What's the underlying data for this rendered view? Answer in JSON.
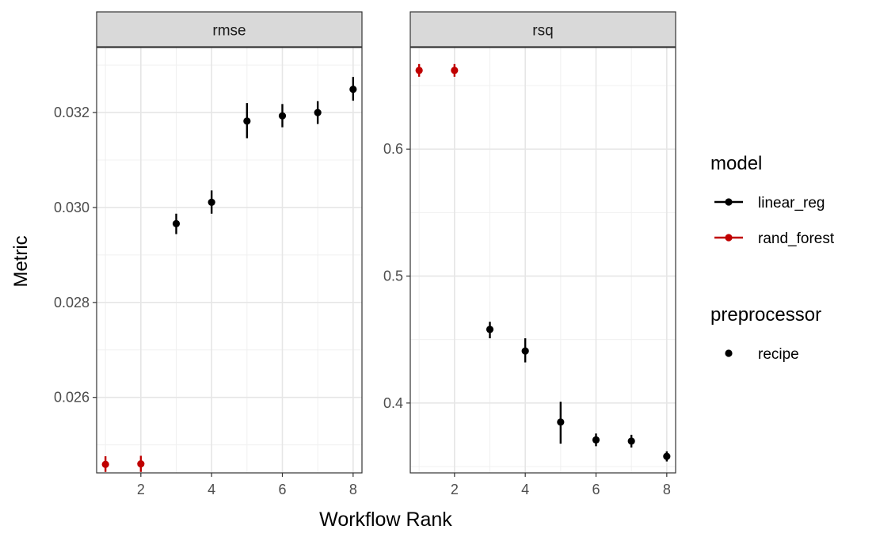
{
  "chart_data": {
    "type": "scatter",
    "xlabel": "Workflow Rank",
    "ylabel": "Metric",
    "colors": {
      "linear_reg": "#000000",
      "rand_forest": "#c00000"
    },
    "legends": [
      {
        "title": "model",
        "entries": [
          {
            "label": "linear_reg",
            "color": "#000000"
          },
          {
            "label": "rand_forest",
            "color": "#c00000"
          }
        ]
      },
      {
        "title": "preprocessor",
        "entries": [
          {
            "label": "recipe",
            "color": "#000000"
          }
        ]
      }
    ],
    "panels": [
      {
        "strip": "rmse",
        "xlim": [
          0.75,
          8.25
        ],
        "ylim": [
          0.02441,
          0.03337
        ],
        "xticks": [
          "2",
          "4",
          "6",
          "8"
        ],
        "yticks": [
          "0.026",
          "0.028",
          "0.030",
          "0.032"
        ],
        "points": [
          {
            "x": 1,
            "y": 0.02459,
            "lo": 0.02443,
            "hi": 0.02476,
            "model": "rand_forest"
          },
          {
            "x": 2,
            "y": 0.0246,
            "lo": 0.02443,
            "hi": 0.02477,
            "model": "rand_forest"
          },
          {
            "x": 3,
            "y": 0.02966,
            "lo": 0.02944,
            "hi": 0.02987,
            "model": "linear_reg"
          },
          {
            "x": 4,
            "y": 0.03011,
            "lo": 0.02987,
            "hi": 0.03036,
            "model": "linear_reg"
          },
          {
            "x": 5,
            "y": 0.03182,
            "lo": 0.03146,
            "hi": 0.0322,
            "model": "linear_reg"
          },
          {
            "x": 6,
            "y": 0.03193,
            "lo": 0.03169,
            "hi": 0.03218,
            "model": "linear_reg"
          },
          {
            "x": 7,
            "y": 0.032,
            "lo": 0.03176,
            "hi": 0.03224,
            "model": "linear_reg"
          },
          {
            "x": 8,
            "y": 0.03249,
            "lo": 0.03225,
            "hi": 0.03275,
            "model": "linear_reg"
          }
        ]
      },
      {
        "strip": "rsq",
        "xlim": [
          0.75,
          8.25
        ],
        "ylim": [
          0.345,
          0.68
        ],
        "xticks": [
          "2",
          "4",
          "6",
          "8"
        ],
        "yticks": [
          "0.4",
          "0.5",
          "0.6"
        ],
        "points": [
          {
            "x": 1,
            "y": 0.662,
            "lo": 0.657,
            "hi": 0.667,
            "model": "rand_forest"
          },
          {
            "x": 2,
            "y": 0.662,
            "lo": 0.657,
            "hi": 0.667,
            "model": "rand_forest"
          },
          {
            "x": 3,
            "y": 0.458,
            "lo": 0.451,
            "hi": 0.464,
            "model": "linear_reg"
          },
          {
            "x": 4,
            "y": 0.441,
            "lo": 0.432,
            "hi": 0.451,
            "model": "linear_reg"
          },
          {
            "x": 5,
            "y": 0.385,
            "lo": 0.368,
            "hi": 0.401,
            "model": "linear_reg"
          },
          {
            "x": 6,
            "y": 0.371,
            "lo": 0.366,
            "hi": 0.376,
            "model": "linear_reg"
          },
          {
            "x": 7,
            "y": 0.37,
            "lo": 0.365,
            "hi": 0.375,
            "model": "linear_reg"
          },
          {
            "x": 8,
            "y": 0.358,
            "lo": 0.354,
            "hi": 0.362,
            "model": "linear_reg"
          }
        ]
      }
    ]
  }
}
